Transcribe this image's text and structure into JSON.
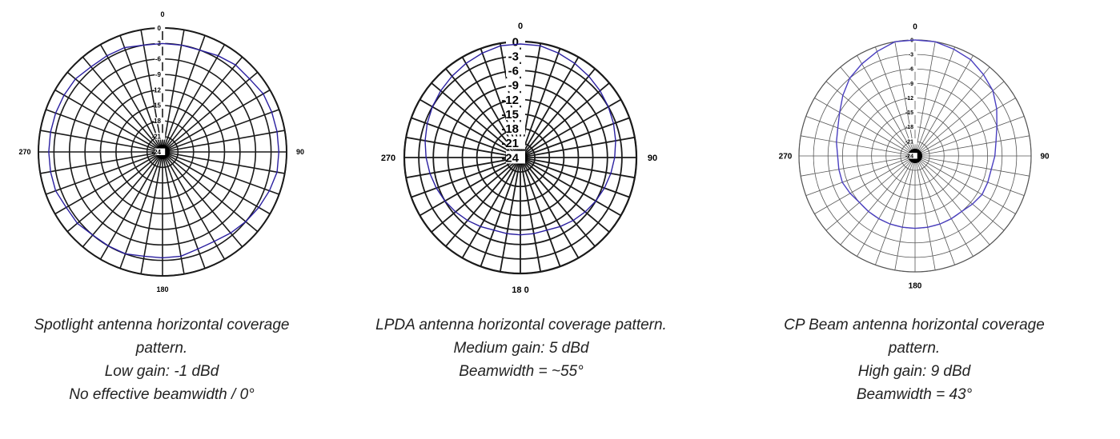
{
  "chart_data": [
    {
      "type": "polar-line",
      "angle_labels": [
        "0",
        "90",
        "180",
        "270"
      ],
      "radial_ticks": [
        "0",
        "-3",
        "-6",
        "-9",
        "-12",
        "-15",
        "-18",
        "-21",
        "-24"
      ],
      "rlim": [
        -24,
        0
      ],
      "angle_step_deg": 10,
      "grid": true,
      "series": [
        {
          "theta": [
            0,
            10,
            20,
            30,
            40,
            50,
            60,
            70,
            80,
            90,
            100,
            110,
            120,
            130,
            140,
            150,
            160,
            170,
            180,
            190,
            200,
            210,
            220,
            230,
            240,
            250,
            260,
            270,
            280,
            290,
            300,
            310,
            320,
            330,
            340,
            350
          ],
          "r": [
            -3,
            -3,
            -3,
            -2.5,
            -2,
            -2,
            -1.5,
            -1.5,
            -1.5,
            -1.5,
            -1.5,
            -2,
            -2.5,
            -3,
            -3.5,
            -4,
            -4,
            -3.5,
            -3.5,
            -3.5,
            -3,
            -3,
            -3,
            -2.5,
            -2.5,
            -2,
            -2,
            -2,
            -2,
            -2,
            -2,
            -2,
            -2.5,
            -2.5,
            -2.5,
            -3
          ],
          "color": "#2a1fa0"
        }
      ],
      "caption": [
        "Spotlight antenna horizontal coverage",
        "pattern.",
        "Low gain: -1 dBd",
        "No effective beamwidth / 0°"
      ]
    },
    {
      "type": "polar-line",
      "angle_labels": [
        "0",
        "90",
        "18 0",
        "270"
      ],
      "radial_ticks": [
        "0",
        "-3",
        "-6",
        "-9",
        "-12",
        "-15",
        "-18",
        "-21",
        "-24"
      ],
      "rlim": [
        -24,
        0
      ],
      "angle_step_deg": 10,
      "grid": true,
      "series": [
        {
          "theta": [
            0,
            10,
            20,
            30,
            40,
            50,
            60,
            70,
            80,
            90,
            100,
            110,
            120,
            130,
            140,
            150,
            160,
            170,
            180,
            190,
            200,
            210,
            220,
            230,
            240,
            250,
            260,
            270,
            280,
            290,
            300,
            310,
            320,
            330,
            340,
            350
          ],
          "r": [
            -0.5,
            -0.5,
            -1,
            -1.5,
            -2,
            -2.5,
            -3,
            -3.5,
            -4,
            -4.5,
            -5,
            -5.5,
            -6,
            -6.5,
            -7,
            -7.5,
            -8,
            -8,
            -8,
            -8,
            -8,
            -7.5,
            -7,
            -6.5,
            -6,
            -5.5,
            -5,
            -4.5,
            -4,
            -3.5,
            -3,
            -2.5,
            -2,
            -1.5,
            -1,
            -0.5
          ],
          "color": "#2a1fa0"
        }
      ],
      "caption": [
        "LPDA antenna horizontal coverage pattern.",
        "Medium gain: 5 dBd",
        "Beamwidth = ~55°"
      ]
    },
    {
      "type": "polar-line",
      "angle_labels": [
        "0",
        "90",
        "180",
        "270"
      ],
      "radial_ticks": [
        "0",
        "-3",
        "-6",
        "-9",
        "-12",
        "-15",
        "-18",
        "-21",
        "-24"
      ],
      "rlim": [
        -24,
        0
      ],
      "angle_step_deg": 10,
      "grid": true,
      "series": [
        {
          "theta": [
            0,
            10,
            20,
            30,
            40,
            50,
            60,
            70,
            80,
            90,
            100,
            110,
            120,
            130,
            140,
            150,
            160,
            170,
            180,
            190,
            200,
            210,
            220,
            230,
            240,
            250,
            260,
            270,
            280,
            290,
            300,
            310,
            320,
            330,
            340,
            350
          ],
          "r": [
            0,
            0,
            -0.5,
            -1,
            -2,
            -3,
            -4.5,
            -6,
            -7,
            -7.5,
            -8,
            -8,
            -8,
            -8.5,
            -9,
            -9,
            -9,
            -9,
            -9,
            -9,
            -9,
            -9,
            -9,
            -9,
            -8.5,
            -8,
            -8,
            -8,
            -7.5,
            -7,
            -6,
            -4.5,
            -3,
            -2,
            -1,
            0
          ],
          "color": "#4a3fc0"
        }
      ],
      "caption": [
        "CP Beam antenna horizontal coverage",
        "pattern.",
        "High gain: 9 dBd",
        "Beamwidth = 43°"
      ]
    }
  ]
}
